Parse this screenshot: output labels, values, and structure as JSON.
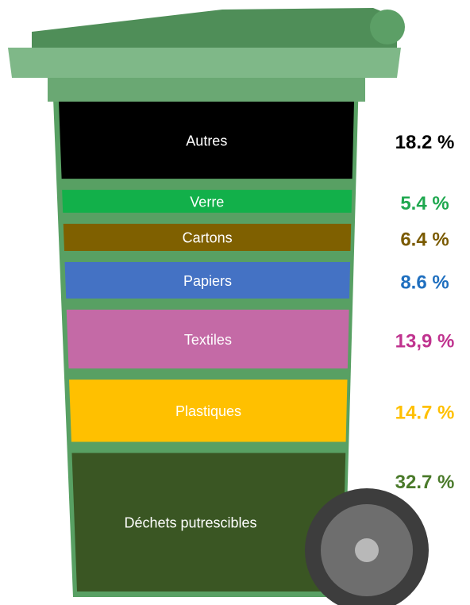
{
  "chart_data": {
    "type": "bar",
    "categories": [
      "Autres",
      "Verre",
      "Cartons",
      "Papiers",
      "Textiles",
      "Plastiques",
      "Déchets putrescibles"
    ],
    "values": [
      18.2,
      5.4,
      6.4,
      8.6,
      13.9,
      14.7,
      32.7
    ],
    "value_labels": [
      "18.2 %",
      "5.4 %",
      "6.4 %",
      "8.6 %",
      "13,9 %",
      "14.7 %",
      "32.7 %"
    ],
    "colors": [
      "#000000",
      "#12b04a",
      "#7f6000",
      "#4472c4",
      "#c46aa6",
      "#ffc000",
      "#3a5623"
    ],
    "label_colors": [
      "#000000",
      "#1fa84f",
      "#7a5a00",
      "#1f6fbf",
      "#c0338f",
      "#ffc000",
      "#4a7a2a"
    ]
  }
}
